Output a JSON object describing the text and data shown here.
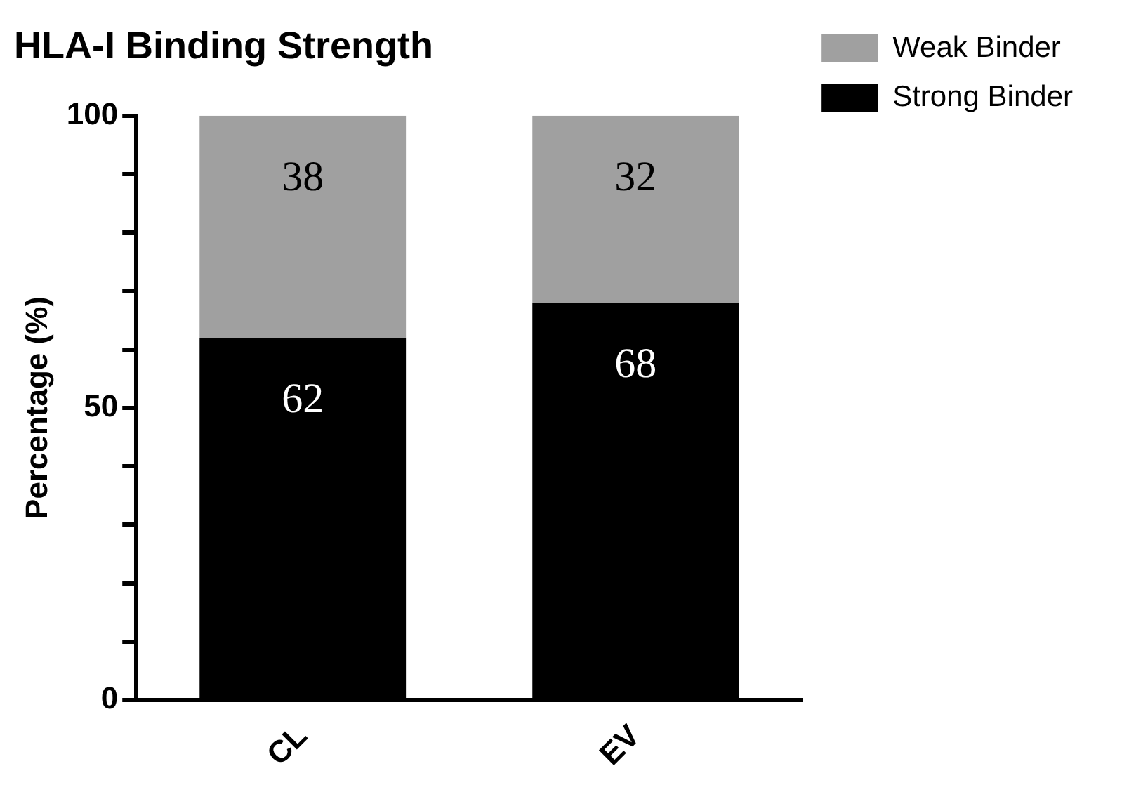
{
  "chart_data": {
    "type": "bar",
    "title": "HLA-I Binding Strength",
    "ylabel": "Percentage (%)",
    "categories": [
      "CL",
      "EV"
    ],
    "stacked": true,
    "series": [
      {
        "name": "Strong Binder",
        "color": "#000000",
        "values": [
          62,
          68
        ]
      },
      {
        "name": "Weak Binder",
        "color": "#a0a0a0",
        "values": [
          38,
          32
        ]
      }
    ],
    "ylim": [
      0,
      100
    ],
    "yticks": [
      0,
      {
        "value": 10,
        "label": null
      },
      {
        "value": 20,
        "label": null
      },
      {
        "value": 30,
        "label": null
      },
      {
        "value": 40,
        "label": null
      },
      50,
      {
        "value": 60,
        "label": null
      },
      {
        "value": 70,
        "label": null
      },
      {
        "value": 80,
        "label": null
      },
      {
        "value": 90,
        "label": null
      },
      100
    ],
    "grid": false,
    "legend": "top right",
    "data_labels": true
  }
}
